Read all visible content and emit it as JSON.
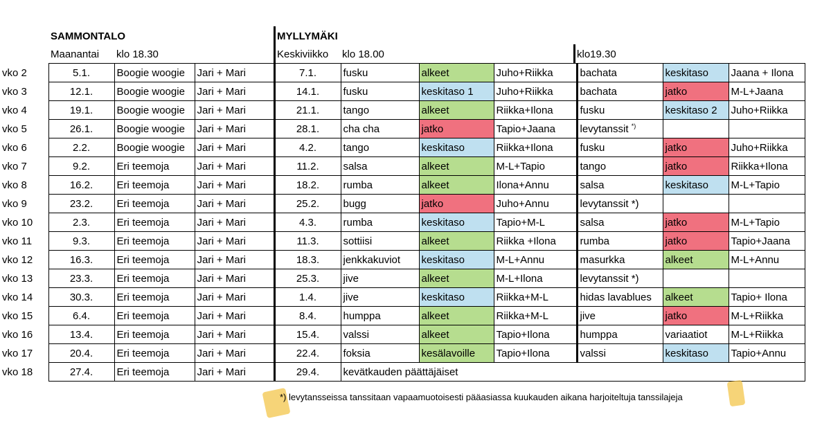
{
  "venue_left": {
    "title": "SAMMONTALO",
    "day": "Maanantai",
    "time": "klo 18.30"
  },
  "venue_right": {
    "title": "MYLLYMÄKI",
    "day": "Keskiviikko",
    "time": "klo 18.00",
    "time2": "klo19.30"
  },
  "colors": {
    "green": "#b6dd8f",
    "blue": "#bfe0f0",
    "pink": "#f0717f"
  },
  "rows": [
    {
      "week": "vko 2",
      "d1": "5.1.",
      "t1": "Boogie woogie",
      "i1": "Jari + Mari",
      "d2": "7.1.",
      "t2": "fusku",
      "l2": "alkeet",
      "c2": "green",
      "i2": "Juho+Riikka",
      "t3": "bachata",
      "l3": "keskitaso",
      "c3": "blue",
      "i3": "Jaana + Ilona"
    },
    {
      "week": "vko 3",
      "d1": "12.1.",
      "t1": "Boogie woogie",
      "i1": "Jari + Mari",
      "d2": "14.1.",
      "t2": "fusku",
      "l2": "keskitaso 1",
      "c2": "blue",
      "i2": "Juho+Riikka",
      "t3": " bachata",
      "l3": "jatko",
      "c3": "pink",
      "i3": "M-L+Jaana"
    },
    {
      "week": "vko 4",
      "d1": "19.1.",
      "t1": "Boogie woogie",
      "i1": "Jari + Mari",
      "d2": "21.1.",
      "t2": "tango",
      "l2": "alkeet",
      "c2": "green",
      "i2": "Riikka+Ilona",
      "t3": "fusku",
      "l3": "keskitaso 2",
      "c3": "blue",
      "i3": "Juho+Riikka"
    },
    {
      "week": "vko 5",
      "d1": "26.1.",
      "t1": "Boogie woogie",
      "i1": "Jari + Mari",
      "d2": "28.1.",
      "t2": "cha cha",
      "l2": "jatko",
      "c2": "pink",
      "i2": "Tapio+Jaana",
      "t3": "levytanssit",
      "t3sup": "*)",
      "l3": "",
      "c3": "",
      "i3": ""
    },
    {
      "week": "vko 6",
      "d1": "2.2.",
      "t1": "Boogie woogie",
      "i1": "Jari + Mari",
      "d2": "4.2.",
      "t2": "tango",
      "l2": "keskitaso",
      "c2": "blue",
      "i2": "Riikka+Ilona",
      "t3": "fusku",
      "l3": "jatko",
      "c3": "pink",
      "i3": "Juho+Riikka"
    },
    {
      "week": "vko 7",
      "d1": "9.2.",
      "t1": "Eri teemoja",
      "i1": "Jari + Mari",
      "d2": "11.2.",
      "t2": "salsa",
      "l2": "alkeet",
      "c2": "green",
      "i2": "M-L+Tapio",
      "t3": "tango",
      "l3": "jatko",
      "c3": "pink",
      "i3": "Riikka+Ilona"
    },
    {
      "week": "vko 8",
      "d1": "16.2.",
      "t1": "Eri teemoja",
      "i1": "Jari + Mari",
      "d2": "18.2.",
      "t2": "rumba",
      "l2": "alkeet",
      "c2": "green",
      "i2": "Ilona+Annu",
      "t3": "salsa",
      "l3": "keskitaso",
      "c3": "blue",
      "i3": "M-L+Tapio"
    },
    {
      "week": "vko 9",
      "d1": "23.2.",
      "t1": "Eri teemoja",
      "i1": "Jari + Mari",
      "d2": "25.2.",
      "t2": "bugg",
      "l2": "jatko",
      "c2": "pink",
      "i2": "Juho+Annu",
      "t3": "levytanssit *)",
      "l3": "",
      "c3": "",
      "i3": ""
    },
    {
      "week": "vko 10",
      "d1": "2.3.",
      "t1": "Eri teemoja",
      "i1": "Jari + Mari",
      "d2": "4.3.",
      "t2": "rumba",
      "l2": "keskitaso",
      "c2": "blue",
      "i2": "Tapio+M-L",
      "t3": "salsa",
      "l3": "jatko",
      "c3": "pink",
      "i3": "M-L+Tapio"
    },
    {
      "week": "vko 11",
      "d1": "9.3.",
      "t1": "Eri teemoja",
      "i1": "Jari + Mari",
      "d2": "11.3.",
      "t2": "sottiisi",
      "l2": "alkeet",
      "c2": "green",
      "i2": "Riikka +Ilona",
      "t3": "rumba",
      "l3": "jatko",
      "c3": "pink",
      "i3": "Tapio+Jaana"
    },
    {
      "week": "vko 12",
      "d1": "16.3.",
      "t1": "Eri teemoja",
      "i1": "Jari + Mari",
      "d2": "18.3.",
      "t2": "jenkkakuviot",
      "l2": "keskitaso",
      "c2": "blue",
      "i2": "M-L+Annu",
      "t3": "masurkka",
      "l3": "alkeet",
      "c3": "green",
      "i3": "M-L+Annu"
    },
    {
      "week": "vko 13",
      "d1": "23.3.",
      "t1": "Eri teemoja",
      "i1": "Jari + Mari",
      "d2": "25.3.",
      "t2": "jive",
      "l2": "alkeet",
      "c2": "green",
      "i2": "M-L+Ilona",
      "t3": "levytanssit *)",
      "l3": "",
      "c3": "",
      "i3": ""
    },
    {
      "week": "vko 14",
      "d1": "30.3.",
      "t1": "Eri teemoja",
      "i1": "Jari + Mari",
      "d2": "1.4.",
      "t2": "jive",
      "l2": "keskitaso",
      "c2": "blue",
      "i2": "Riikka+M-L",
      "t3": "hidas lavablues",
      "l3": "alkeet",
      "c3": "green",
      "i3": "Tapio+ Ilona"
    },
    {
      "week": "vko 15",
      "d1": "6.4.",
      "t1": "Eri teemoja",
      "i1": "Jari + Mari",
      "d2": "8.4.",
      "t2": "humppa",
      "l2": "alkeet",
      "c2": "green",
      "i2": "Riikka+M-L",
      "t3": "jive",
      "l3": "jatko",
      "c3": "pink",
      "i3": "M-L+Riikka"
    },
    {
      "week": "vko 16",
      "d1": "13.4.",
      "t1": "Eri teemoja",
      "i1": "Jari + Mari",
      "d2": "15.4.",
      "t2": "valssi",
      "l2": "alkeet",
      "c2": "green",
      "i2": "Tapio+Ilona",
      "t3": "humppa",
      "l3": "variaatiot",
      "c3": "",
      "i3": "M-L+Riikka"
    },
    {
      "week": "vko 17",
      "d1": "20.4.",
      "t1": "Eri teemoja",
      "i1": "Jari + Mari",
      "d2": "22.4.",
      "t2": "foksia",
      "l2": "kesälavoille",
      "c2": "green",
      "i2": "Tapio+Ilona",
      "t3": "valssi",
      "l3": "keskitaso",
      "c3": "blue",
      "i3": "Tapio+Annu"
    }
  ],
  "last_row": {
    "week": "vko 18",
    "d1": "27.4.",
    "t1": "Eri teemoja",
    "i1": "Jari + Mari",
    "d2": "29.4.",
    "text": "kevätkauden päättäjäiset"
  },
  "footnote": "*) levytansseissa tanssitaan vapaamuotoisesti pääasiassa kuukauden aikana harjoiteltuja tanssilajeja"
}
